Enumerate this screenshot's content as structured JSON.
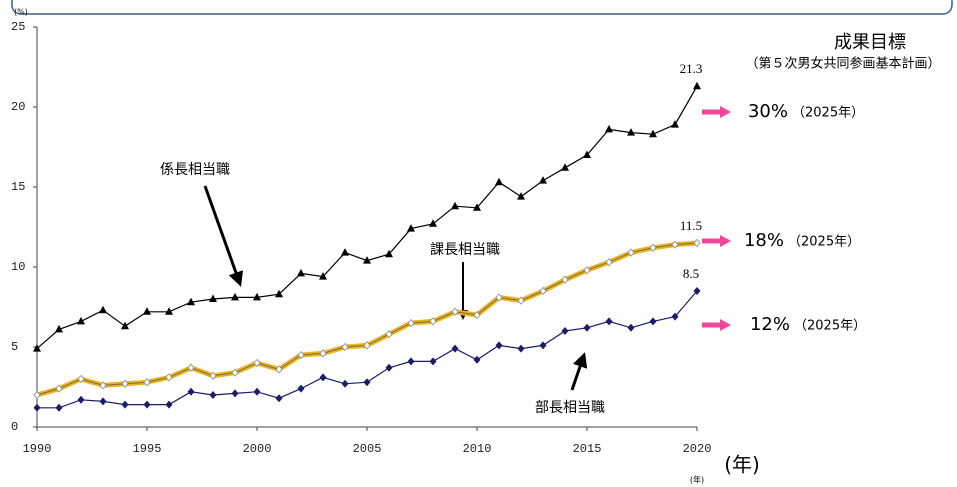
{
  "chart_data": {
    "type": "line",
    "y_unit": "(%)",
    "x_unit_small": "(年)",
    "x_unit": "(年)",
    "x": [
      1990,
      1991,
      1992,
      1993,
      1994,
      1995,
      1996,
      1997,
      1998,
      1999,
      2000,
      2001,
      2002,
      2003,
      2004,
      2005,
      2006,
      2007,
      2008,
      2009,
      2010,
      2011,
      2012,
      2013,
      2014,
      2015,
      2016,
      2017,
      2018,
      2019,
      2020
    ],
    "xlim": [
      1990,
      2020
    ],
    "xticks": [
      1990,
      1995,
      2000,
      2005,
      2010,
      2015,
      2020
    ],
    "ylim": [
      0,
      25
    ],
    "yticks": [
      0,
      5,
      10,
      15,
      20,
      25
    ],
    "grid": false,
    "series": [
      {
        "name": "係長相当職",
        "color": "#000000",
        "marker": "triangle",
        "values": [
          4.9,
          6.1,
          6.6,
          7.3,
          6.3,
          7.2,
          7.2,
          7.8,
          8.0,
          8.1,
          8.1,
          8.3,
          9.6,
          9.4,
          10.9,
          10.4,
          10.8,
          12.4,
          12.7,
          13.8,
          13.7,
          15.3,
          14.4,
          15.4,
          16.2,
          17.0,
          18.6,
          18.4,
          18.3,
          18.9,
          21.3
        ]
      },
      {
        "name": "課長相当職",
        "color": "#e8b423",
        "marker": "diamond-open",
        "values": [
          2.0,
          2.4,
          3.0,
          2.6,
          2.7,
          2.8,
          3.1,
          3.7,
          3.2,
          3.4,
          4.0,
          3.6,
          4.5,
          4.6,
          5.0,
          5.1,
          5.8,
          6.5,
          6.6,
          7.2,
          7.0,
          8.1,
          7.9,
          8.5,
          9.2,
          9.8,
          10.3,
          10.9,
          11.2,
          11.4,
          11.5
        ]
      },
      {
        "name": "部長相当職",
        "color": "#1c1c6b",
        "marker": "diamond",
        "values": [
          1.2,
          1.2,
          1.7,
          1.6,
          1.4,
          1.4,
          1.4,
          2.2,
          2.0,
          2.1,
          2.2,
          1.8,
          2.4,
          3.1,
          2.7,
          2.8,
          3.7,
          4.1,
          4.1,
          4.9,
          4.2,
          5.1,
          4.9,
          5.1,
          6.0,
          6.2,
          6.6,
          6.2,
          6.6,
          6.9,
          8.5
        ]
      }
    ],
    "target_title": "成果目標",
    "target_subtitle": "（第５次男女共同参画基本計画）",
    "target_color": "#f0479a",
    "targets": [
      {
        "label": "30%",
        "year": "（2025年）"
      },
      {
        "label": "18%",
        "year": "（2025年）"
      },
      {
        "label": "12%",
        "year": "（2025年）"
      }
    ]
  }
}
